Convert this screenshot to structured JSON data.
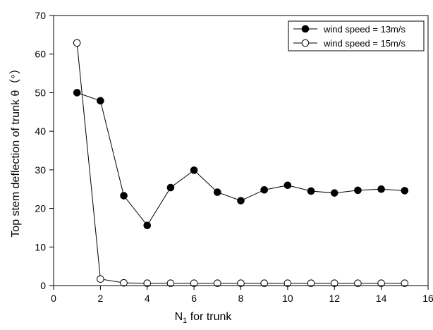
{
  "chart_data": {
    "type": "line",
    "xlabel": "N",
    "xlabel_sub": "1",
    "xlabel_suffix": " for trunk",
    "ylabel": "Top stem deflection of trunk θ（°）",
    "xlim": [
      0,
      16
    ],
    "ylim": [
      0,
      70
    ],
    "x_ticks": [
      0,
      2,
      4,
      6,
      8,
      10,
      12,
      14,
      16
    ],
    "y_ticks": [
      0,
      10,
      20,
      30,
      40,
      50,
      60,
      70
    ],
    "x_tick_labels": [
      "0",
      "2",
      "4",
      "6",
      "8",
      "10",
      "12",
      "14",
      "16"
    ],
    "y_tick_labels": [
      "0",
      "10",
      "20",
      "30",
      "40",
      "50",
      "60",
      "70"
    ],
    "grid": false,
    "legend_position": "top-right",
    "x": [
      1,
      2,
      3,
      4,
      5,
      6,
      7,
      8,
      9,
      10,
      11,
      12,
      13,
      14,
      15
    ],
    "series": [
      {
        "name": "wind speed = 13m/s",
        "marker": "filled-circle",
        "values": [
          50.0,
          47.9,
          23.3,
          15.6,
          25.4,
          29.9,
          24.2,
          22.0,
          24.8,
          26.0,
          24.5,
          24.0,
          24.7,
          25.0,
          24.6
        ]
      },
      {
        "name": "wind speed = 15m/s",
        "marker": "open-circle",
        "values": [
          62.9,
          1.7,
          0.7,
          0.6,
          0.6,
          0.6,
          0.6,
          0.6,
          0.6,
          0.6,
          0.6,
          0.6,
          0.6,
          0.6,
          0.6
        ]
      }
    ]
  }
}
